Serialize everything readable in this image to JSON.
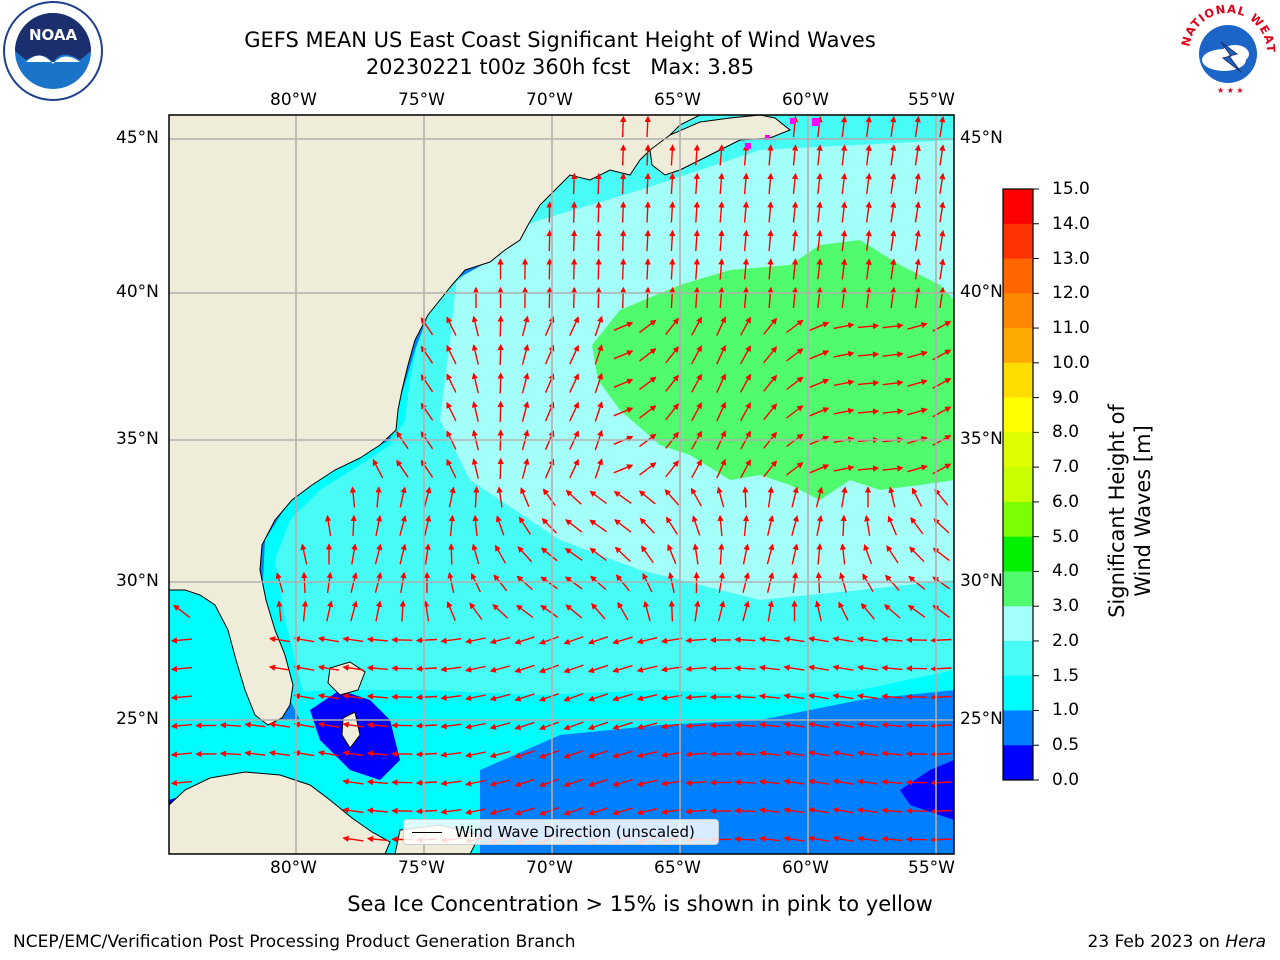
{
  "header": {
    "title_line1": "GEFS MEAN US East Coast Significant Height of Wind Waves",
    "title_line2": "20230221 t00z 360h fcst   Max: 3.85"
  },
  "logos": {
    "left": {
      "icon": "noaa-logo-icon",
      "text": "NOAA"
    },
    "right": {
      "icon": "national-weather-service-logo-icon",
      "text": "NATIONAL WEATHER SERVICE"
    }
  },
  "map": {
    "lon_labels": [
      "80°W",
      "75°W",
      "70°W",
      "65°W",
      "60°W",
      "55°W"
    ],
    "lat_labels": [
      "45°N",
      "40°N",
      "35°N",
      "30°N",
      "25°N"
    ],
    "legend_label": "Wind Wave Direction (unscaled)",
    "colors": {
      "land": "#efedd9",
      "ocean_2_3": "#a3fff8",
      "ocean_15_2": "#48fcf6",
      "ocean_1_15": "#00fdfd",
      "ocean_05_1": "#0080fe",
      "ocean_0_05": "#0000fe",
      "high_3_4": "#50fb6e",
      "arrow": "#ff0000",
      "ice": "#ff00ff"
    }
  },
  "colorbar": {
    "title": "Significant Height of Wind Waves [m]",
    "ticks": [
      "15.0",
      "14.0",
      "13.0",
      "12.0",
      "11.0",
      "10.0",
      "9.0",
      "8.0",
      "7.0",
      "6.0",
      "5.0",
      "4.0",
      "3.0",
      "2.0",
      "1.5",
      "1.0",
      "0.5",
      "0.0"
    ],
    "colors": [
      "#ff0000",
      "#ff3300",
      "#ff6600",
      "#ff8800",
      "#ffaa00",
      "#ffdd00",
      "#ffff00",
      "#ddff00",
      "#c8ff00",
      "#7cff00",
      "#00f000",
      "#50fb6e",
      "#a3fff8",
      "#48fcf6",
      "#00fdfd",
      "#0080fe",
      "#0000fe"
    ]
  },
  "footer": {
    "subtitle": "Sea Ice Concentration > 15% is shown in pink to yellow",
    "left": "NCEP/EMC/Verification Post Processing Product Generation Branch",
    "right_prefix": "23 Feb 2023 on ",
    "right_host": "Hera"
  }
}
